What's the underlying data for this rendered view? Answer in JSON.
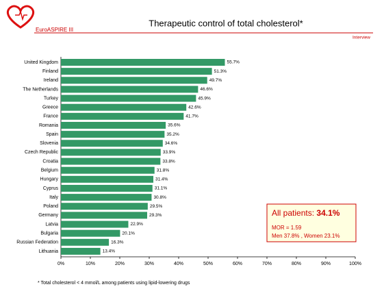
{
  "header": {
    "logo_text": "EuroASPIRE III",
    "tag": "Interview"
  },
  "chart_data": {
    "type": "bar",
    "orientation": "horizontal",
    "title": "Therapeutic control of total cholesterol*",
    "categories": [
      "United Kingdom",
      "Finland",
      "Ireland",
      "The Netherlands",
      "Turkey",
      "Greece",
      "France",
      "Romania",
      "Spain",
      "Slovenia",
      "Czech Republic",
      "Croatia",
      "Belgium",
      "Hungary",
      "Cyprus",
      "Italy",
      "Poland",
      "Germany",
      "Latvia",
      "Bulgaria",
      "Russian Federation",
      "Lithuania"
    ],
    "values": [
      55.7,
      51.3,
      49.7,
      46.6,
      45.9,
      42.6,
      41.7,
      35.6,
      35.2,
      34.6,
      33.9,
      33.8,
      31.8,
      31.4,
      31.1,
      30.8,
      29.5,
      29.3,
      22.9,
      20.1,
      16.3,
      13.4
    ],
    "value_labels": [
      "55.7%",
      "51.3%",
      "49.7%",
      "46.6%",
      "45.9%",
      "42.6%",
      "41.7%",
      "35.6%",
      "35.2%",
      "34.6%",
      "33.9%",
      "33.8%",
      "31.8%",
      "31.4%",
      "31.1%",
      "30.8%",
      "29.5%",
      "29.3%",
      "22.9%",
      "20.1%",
      "16.3%",
      "13.4%"
    ],
    "color": "#339966",
    "xlim": [
      0,
      100
    ],
    "xticks": [
      {
        "value": 0,
        "label": "0%"
      },
      {
        "value": 10,
        "label": "10%"
      },
      {
        "value": 20,
        "label": "20%"
      },
      {
        "value": 30,
        "label": "30%"
      },
      {
        "value": 40,
        "label": "40%"
      },
      {
        "value": 50,
        "label": "50%"
      },
      {
        "value": 60,
        "label": "60%"
      },
      {
        "value": 70,
        "label": "70%"
      },
      {
        "value": 80,
        "label": "80%"
      },
      {
        "value": 90,
        "label": "90%"
      },
      {
        "value": 100,
        "label": "100%"
      }
    ],
    "grid": false,
    "annotation": {
      "headline": "All patients:",
      "headline_value": "34.1%",
      "lines": [
        "MOR = 1.59",
        "Men 37.8% , Women 23.1%"
      ]
    }
  },
  "footnote": "* Total cholesterol < 4 mmol/L among patients using lipid-lowering drugs"
}
